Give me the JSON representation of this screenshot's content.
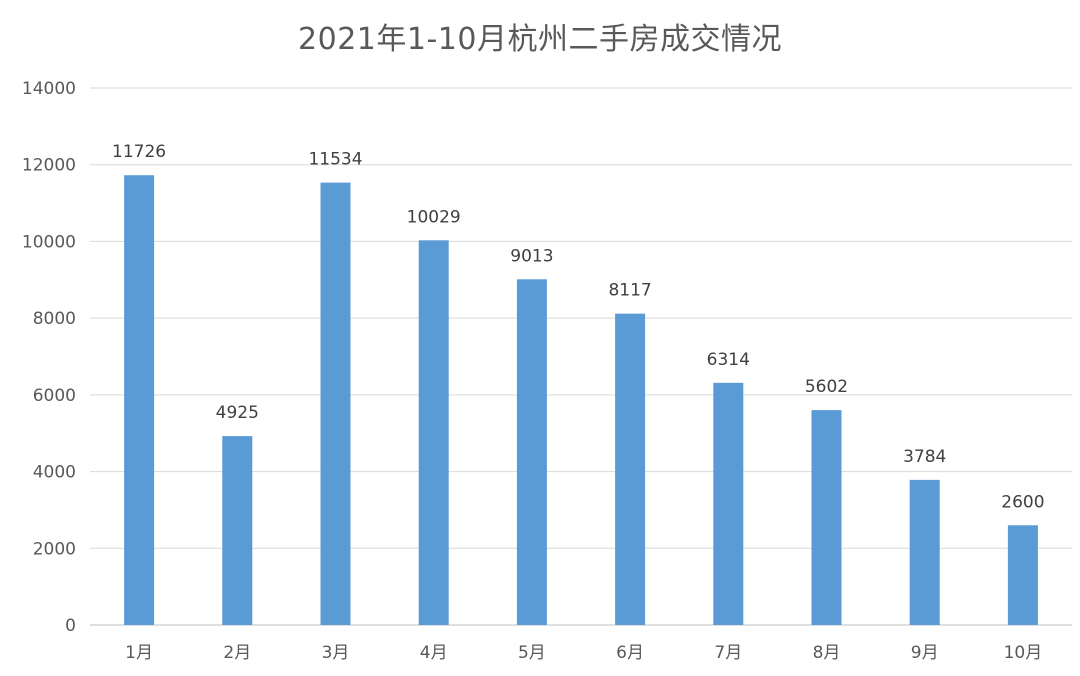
{
  "chart_data": {
    "type": "bar",
    "title": "2021年1-10月杭州二手房成交情况",
    "xlabel": "",
    "ylabel": "",
    "categories": [
      "1月",
      "2月",
      "3月",
      "4月",
      "5月",
      "6月",
      "7月",
      "8月",
      "9月",
      "10月"
    ],
    "values": [
      11726,
      4925,
      11534,
      10029,
      9013,
      8117,
      6314,
      5602,
      3784,
      2600
    ],
    "ylim": [
      0,
      14000
    ],
    "yticks": [
      0,
      2000,
      4000,
      6000,
      8000,
      10000,
      12000,
      14000
    ],
    "grid": true,
    "legend": "none",
    "data_labels": true,
    "colors": {
      "bar": "#5B9BD5",
      "grid": "#D9D9D9",
      "text": "#595959"
    }
  }
}
